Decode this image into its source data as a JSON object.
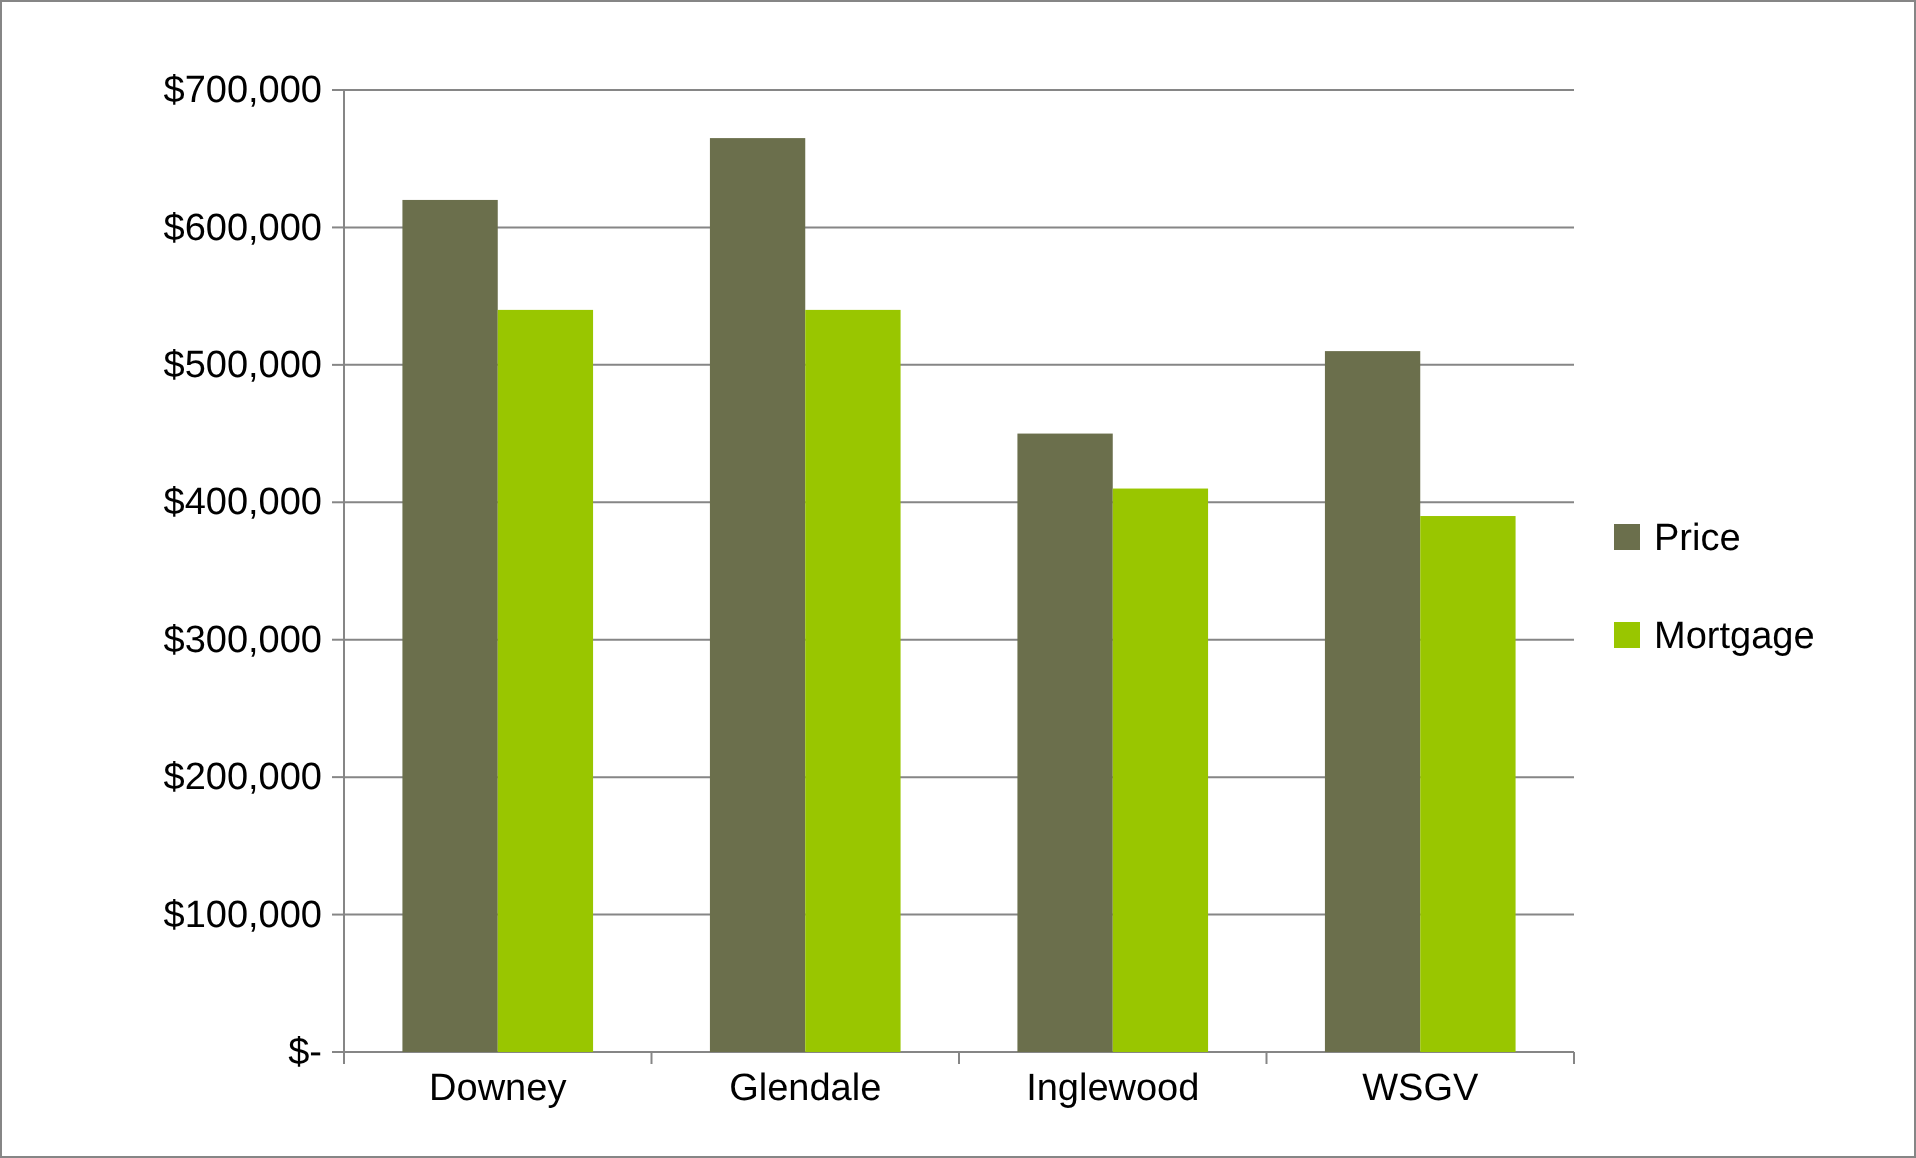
{
  "chart_data": {
    "type": "bar",
    "categories": [
      "Downey",
      "Glendale",
      "Inglewood",
      "WSGV"
    ],
    "series": [
      {
        "name": "Price",
        "color": "#6b6f4c",
        "values": [
          620000,
          665000,
          450000,
          510000
        ]
      },
      {
        "name": "Mortgage",
        "color": "#99c600",
        "values": [
          540000,
          540000,
          410000,
          390000
        ]
      }
    ],
    "ylim": [
      0,
      700000
    ],
    "yticks": [
      {
        "value": 0,
        "label": "$-"
      },
      {
        "value": 100000,
        "label": "$100,000"
      },
      {
        "value": 200000,
        "label": "$200,000"
      },
      {
        "value": 300000,
        "label": "$300,000"
      },
      {
        "value": 400000,
        "label": "$400,000"
      },
      {
        "value": 500000,
        "label": "$500,000"
      },
      {
        "value": 600000,
        "label": "$600,000"
      },
      {
        "value": 700000,
        "label": "$700,000"
      }
    ],
    "grid": "y",
    "legend": "right"
  }
}
